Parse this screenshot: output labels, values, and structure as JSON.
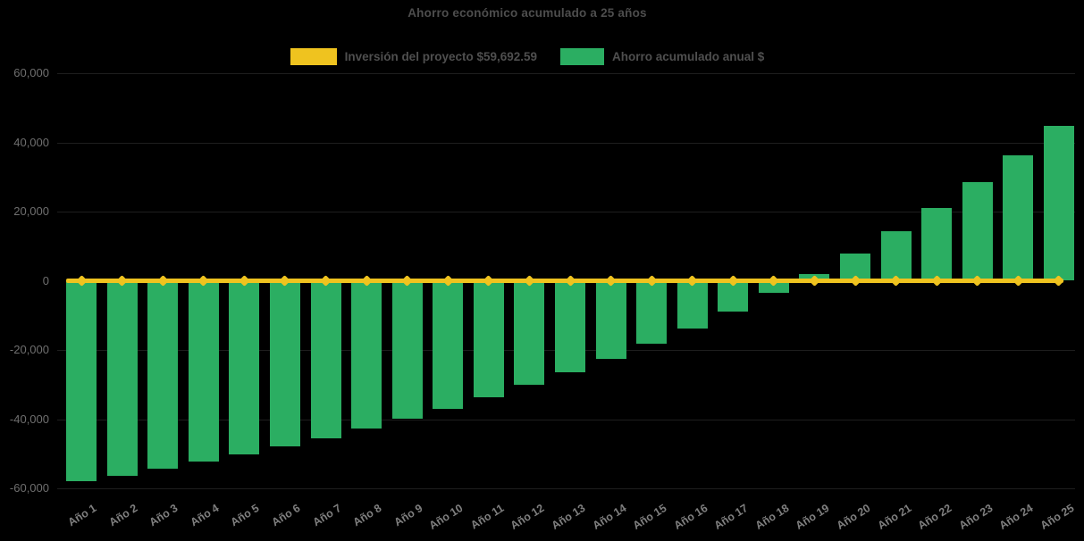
{
  "chart_data": {
    "type": "bar",
    "title": "Ahorro económico acumulado a 25 años",
    "categories": [
      "Año 1",
      "Año 2",
      "Año 3",
      "Año 4",
      "Año 5",
      "Año 6",
      "Año 7",
      "Año 8",
      "Año 9",
      "Año 10",
      "Año 11",
      "Año 12",
      "Año 13",
      "Año 14",
      "Año 15",
      "Año 16",
      "Año 17",
      "Año 18",
      "Año 19",
      "Año 20",
      "Año 21",
      "Año 22",
      "Año 23",
      "Año 24",
      "Año 25"
    ],
    "series": [
      {
        "name": "Inversión del proyecto $59,692.59",
        "type": "line",
        "marker": "diamond",
        "color": "#efc31f",
        "role": "breakeven-reference-line-at-zero",
        "values": [
          0,
          0,
          0,
          0,
          0,
          0,
          0,
          0,
          0,
          0,
          0,
          0,
          0,
          0,
          0,
          0,
          0,
          0,
          0,
          0,
          0,
          0,
          0,
          0,
          0
        ]
      },
      {
        "name": "Ahorro acumulado anual $",
        "type": "bar",
        "color": "#2bae62",
        "values": [
          -58043,
          -56277,
          -54388,
          -52367,
          -50204,
          -47890,
          -45414,
          -42764,
          -39929,
          -36896,
          -33650,
          -30177,
          -26461,
          -22485,
          -18230,
          -13678,
          -8806,
          -3594,
          1983,
          7950,
          14335,
          21167,
          28477,
          36299,
          44668
        ]
      }
    ],
    "xlabel": "",
    "ylabel": "",
    "ylim": [
      -60000,
      60000
    ],
    "yticks": [
      60000,
      40000,
      20000,
      0,
      -20000,
      -40000,
      -60000
    ],
    "ytick_labels": [
      "60,000",
      "40,000",
      "20,000",
      "0",
      "-20,000",
      "-40,000",
      "-60,000"
    ],
    "legend_position": "top-center",
    "grid": "horizontal-faint",
    "background_color": "#000000",
    "text_color_title": "#4d4d4d",
    "text_color_axis": "#7f7f7f"
  }
}
